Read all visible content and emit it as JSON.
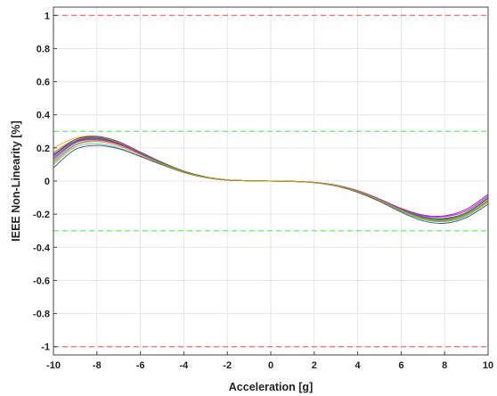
{
  "chart_data": {
    "type": "line",
    "title": "",
    "xlabel": "Acceleration [g]",
    "ylabel": "IEEE Non-Linearity [%]",
    "xlim": [
      -10,
      10
    ],
    "ylim": [
      -1.05,
      1.05
    ],
    "x_ticks": [
      -10,
      -8,
      -6,
      -4,
      -2,
      0,
      2,
      4,
      6,
      8,
      10
    ],
    "y_ticks": [
      -1,
      -0.8,
      -0.6,
      -0.4,
      -0.2,
      0,
      0.2,
      0.4,
      0.6,
      0.8,
      1
    ],
    "x_tick_labels": [
      "-10",
      "-8",
      "-6",
      "-4",
      "-2",
      "0",
      "2",
      "4",
      "6",
      "8",
      "10"
    ],
    "y_tick_labels": [
      "-1",
      "-0.8",
      "-0.6",
      "-0.4",
      "-0.2",
      "0",
      "0.2",
      "0.4",
      "0.6",
      "0.8",
      "1"
    ],
    "grid": true,
    "legend": "none",
    "x": [
      -10,
      -9,
      -8,
      -7,
      -6,
      -5,
      -4,
      -3,
      -2,
      -1,
      0,
      1,
      2,
      3,
      4,
      5,
      6,
      7,
      8,
      9,
      10
    ],
    "reference_lines": [
      {
        "y": 1.0,
        "color": "#f07070",
        "style": "dashed"
      },
      {
        "y": -1.0,
        "color": "#f07070",
        "style": "dashed"
      },
      {
        "y": 0.3,
        "color": "#66ee66",
        "style": "dashed"
      },
      {
        "y": -0.3,
        "color": "#66ee66",
        "style": "dashed"
      }
    ],
    "series": [
      {
        "color": "#0072bd",
        "values": [
          0.14,
          0.235,
          0.255,
          0.225,
          0.165,
          0.105,
          0.055,
          0.022,
          0.006,
          0.002,
          0.0,
          -0.002,
          -0.008,
          -0.025,
          -0.06,
          -0.11,
          -0.17,
          -0.215,
          -0.225,
          -0.19,
          -0.1
        ]
      },
      {
        "color": "#d95319",
        "values": [
          0.17,
          0.25,
          0.265,
          0.23,
          0.17,
          0.11,
          0.058,
          0.024,
          0.007,
          0.002,
          0.0,
          -0.002,
          -0.009,
          -0.027,
          -0.063,
          -0.115,
          -0.178,
          -0.225,
          -0.238,
          -0.205,
          -0.12
        ]
      },
      {
        "color": "#edb120",
        "values": [
          0.2,
          0.26,
          0.27,
          0.235,
          0.172,
          0.112,
          0.06,
          0.025,
          0.007,
          0.002,
          0.0,
          -0.002,
          -0.009,
          -0.028,
          -0.065,
          -0.118,
          -0.18,
          -0.23,
          -0.245,
          -0.21,
          -0.13
        ]
      },
      {
        "color": "#7e2f8e",
        "values": [
          0.155,
          0.25,
          0.27,
          0.238,
          0.175,
          0.113,
          0.06,
          0.025,
          0.007,
          0.002,
          0.0,
          -0.002,
          -0.008,
          -0.025,
          -0.058,
          -0.108,
          -0.165,
          -0.205,
          -0.21,
          -0.17,
          -0.08
        ]
      },
      {
        "color": "#77ac30",
        "values": [
          0.12,
          0.22,
          0.245,
          0.22,
          0.165,
          0.108,
          0.057,
          0.023,
          0.006,
          0.002,
          0.0,
          -0.002,
          -0.009,
          -0.027,
          -0.064,
          -0.117,
          -0.18,
          -0.228,
          -0.24,
          -0.205,
          -0.115
        ]
      },
      {
        "color": "#4dbeee",
        "values": [
          0.1,
          0.205,
          0.225,
          0.2,
          0.15,
          0.1,
          0.053,
          0.022,
          0.006,
          0.002,
          0.0,
          -0.002,
          -0.009,
          -0.028,
          -0.066,
          -0.12,
          -0.183,
          -0.232,
          -0.245,
          -0.21,
          -0.125
        ]
      },
      {
        "color": "#a2142f",
        "values": [
          0.16,
          0.24,
          0.26,
          0.228,
          0.168,
          0.108,
          0.057,
          0.023,
          0.006,
          0.002,
          0.0,
          -0.002,
          -0.009,
          -0.027,
          -0.062,
          -0.113,
          -0.175,
          -0.222,
          -0.232,
          -0.195,
          -0.105
        ]
      },
      {
        "color": "#555555",
        "values": [
          0.08,
          0.19,
          0.215,
          0.195,
          0.148,
          0.098,
          0.052,
          0.021,
          0.006,
          0.002,
          0.0,
          -0.002,
          -0.01,
          -0.03,
          -0.068,
          -0.123,
          -0.188,
          -0.24,
          -0.255,
          -0.22,
          -0.14
        ]
      },
      {
        "color": "#ff00ff",
        "values": [
          0.13,
          0.23,
          0.25,
          0.222,
          0.165,
          0.107,
          0.056,
          0.023,
          0.006,
          0.002,
          0.0,
          -0.002,
          -0.008,
          -0.025,
          -0.059,
          -0.109,
          -0.167,
          -0.21,
          -0.215,
          -0.18,
          -0.09
        ]
      },
      {
        "color": "#1f9f4f",
        "values": [
          0.15,
          0.242,
          0.262,
          0.23,
          0.17,
          0.11,
          0.058,
          0.024,
          0.007,
          0.002,
          0.0,
          -0.002,
          -0.009,
          -0.026,
          -0.061,
          -0.112,
          -0.172,
          -0.218,
          -0.228,
          -0.192,
          -0.105
        ]
      },
      {
        "color": "#c8a000",
        "values": [
          0.11,
          0.215,
          0.238,
          0.212,
          0.158,
          0.104,
          0.055,
          0.022,
          0.006,
          0.002,
          0.0,
          -0.002,
          -0.009,
          -0.027,
          -0.063,
          -0.115,
          -0.177,
          -0.225,
          -0.236,
          -0.2,
          -0.115
        ]
      }
    ]
  }
}
